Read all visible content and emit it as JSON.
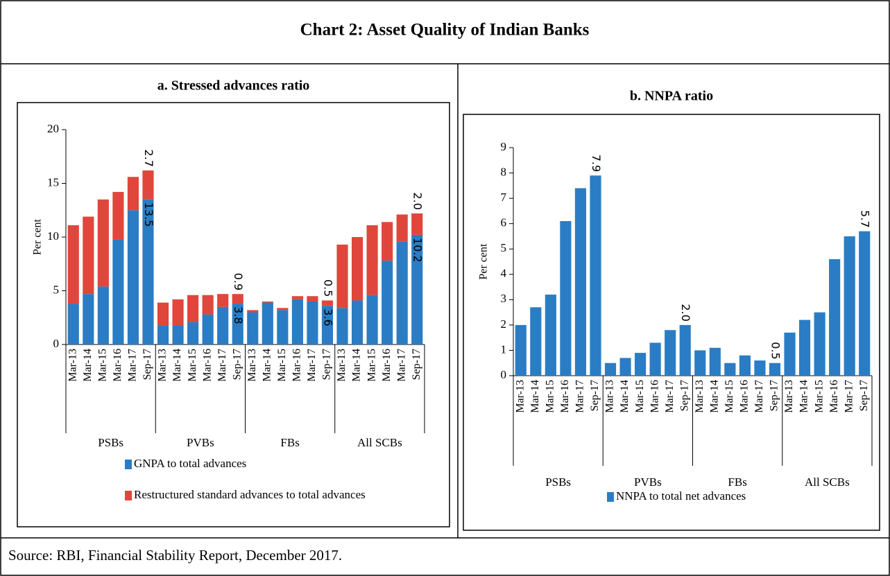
{
  "title": "Chart 2: Asset Quality of Indian Banks",
  "source": "Source: RBI, Financial Stability Report, December 2017.",
  "chart_data": [
    {
      "type": "stacked_bar",
      "title": "a. Stressed advances ratio",
      "y_label": "Per cent",
      "categories": [
        "Mar-13",
        "Mar-14",
        "Mar-15",
        "Mar-16",
        "Mar-17",
        "Sep-17",
        "Mar-13",
        "Mar-14",
        "Mar-15",
        "Mar-16",
        "Mar-17",
        "Sep-17",
        "Mar-13",
        "Mar-14",
        "Mar-15",
        "Mar-16",
        "Mar-17",
        "Sep-17",
        "Mar-13",
        "Mar-14",
        "Mar-15",
        "Mar-16",
        "Mar-17",
        "Sep-17"
      ],
      "groups": [
        "PSBs",
        "PVBs",
        "FBs",
        "All SCBs"
      ],
      "ylim": [
        0,
        20
      ],
      "yticks": [
        0,
        5,
        10,
        15,
        20
      ],
      "series": [
        {
          "name": "GNPA to total advances",
          "color": "#2a7dc4",
          "values": [
            3.8,
            4.7,
            5.4,
            9.8,
            12.5,
            13.5,
            1.8,
            1.8,
            2.1,
            2.8,
            3.5,
            3.8,
            3.0,
            3.9,
            3.2,
            4.2,
            4.0,
            3.6,
            3.4,
            4.1,
            4.6,
            7.8,
            9.6,
            10.2
          ],
          "value_labels": [
            null,
            null,
            null,
            null,
            null,
            "13.5",
            null,
            null,
            null,
            null,
            null,
            "3.8",
            null,
            null,
            null,
            null,
            null,
            "3.6",
            null,
            null,
            null,
            null,
            null,
            "10.2"
          ]
        },
        {
          "name": "Restructured standard advances to total advances",
          "color": "#e0463c",
          "values": [
            7.3,
            7.2,
            8.1,
            4.4,
            3.1,
            2.7,
            2.1,
            2.4,
            2.5,
            1.8,
            1.2,
            0.9,
            0.2,
            0.1,
            0.2,
            0.3,
            0.5,
            0.5,
            5.9,
            5.9,
            6.5,
            3.6,
            2.5,
            2.0
          ],
          "value_labels": [
            null,
            null,
            null,
            null,
            null,
            "2.7",
            null,
            null,
            null,
            null,
            null,
            "0.9",
            null,
            null,
            null,
            null,
            null,
            "0.5",
            null,
            null,
            null,
            null,
            null,
            "2.0"
          ]
        }
      ]
    },
    {
      "type": "bar",
      "title": "b. NNPA ratio",
      "y_label": "Per cent",
      "categories": [
        "Mar-13",
        "Mar-14",
        "Mar-15",
        "Mar-16",
        "Mar-17",
        "Sep-17",
        "Mar-13",
        "Mar-14",
        "Mar-15",
        "Mar-16",
        "Mar-17",
        "Sep-17",
        "Mar-13",
        "Mar-14",
        "Mar-15",
        "Mar-16",
        "Mar-17",
        "Sep-17",
        "Mar-13",
        "Mar-14",
        "Mar-15",
        "Mar-16",
        "Mar-17",
        "Sep-17"
      ],
      "groups": [
        "PSBs",
        "PVBs",
        "FBs",
        "All SCBs"
      ],
      "ylim": [
        0,
        9
      ],
      "yticks": [
        0,
        1,
        2,
        3,
        4,
        5,
        6,
        7,
        8,
        9
      ],
      "series": [
        {
          "name": "NNPA to total net advances",
          "color": "#2a7dc4",
          "values": [
            2.0,
            2.7,
            3.2,
            6.1,
            7.4,
            7.9,
            0.5,
            0.7,
            0.9,
            1.3,
            1.8,
            2.0,
            1.0,
            1.1,
            0.5,
            0.8,
            0.6,
            0.5,
            1.7,
            2.2,
            2.5,
            4.6,
            5.5,
            5.7
          ],
          "value_labels": [
            null,
            null,
            null,
            null,
            null,
            "7.9",
            null,
            null,
            null,
            null,
            null,
            "2.0",
            null,
            null,
            null,
            null,
            null,
            "0.5",
            null,
            null,
            null,
            null,
            null,
            "5.7"
          ]
        }
      ]
    }
  ]
}
